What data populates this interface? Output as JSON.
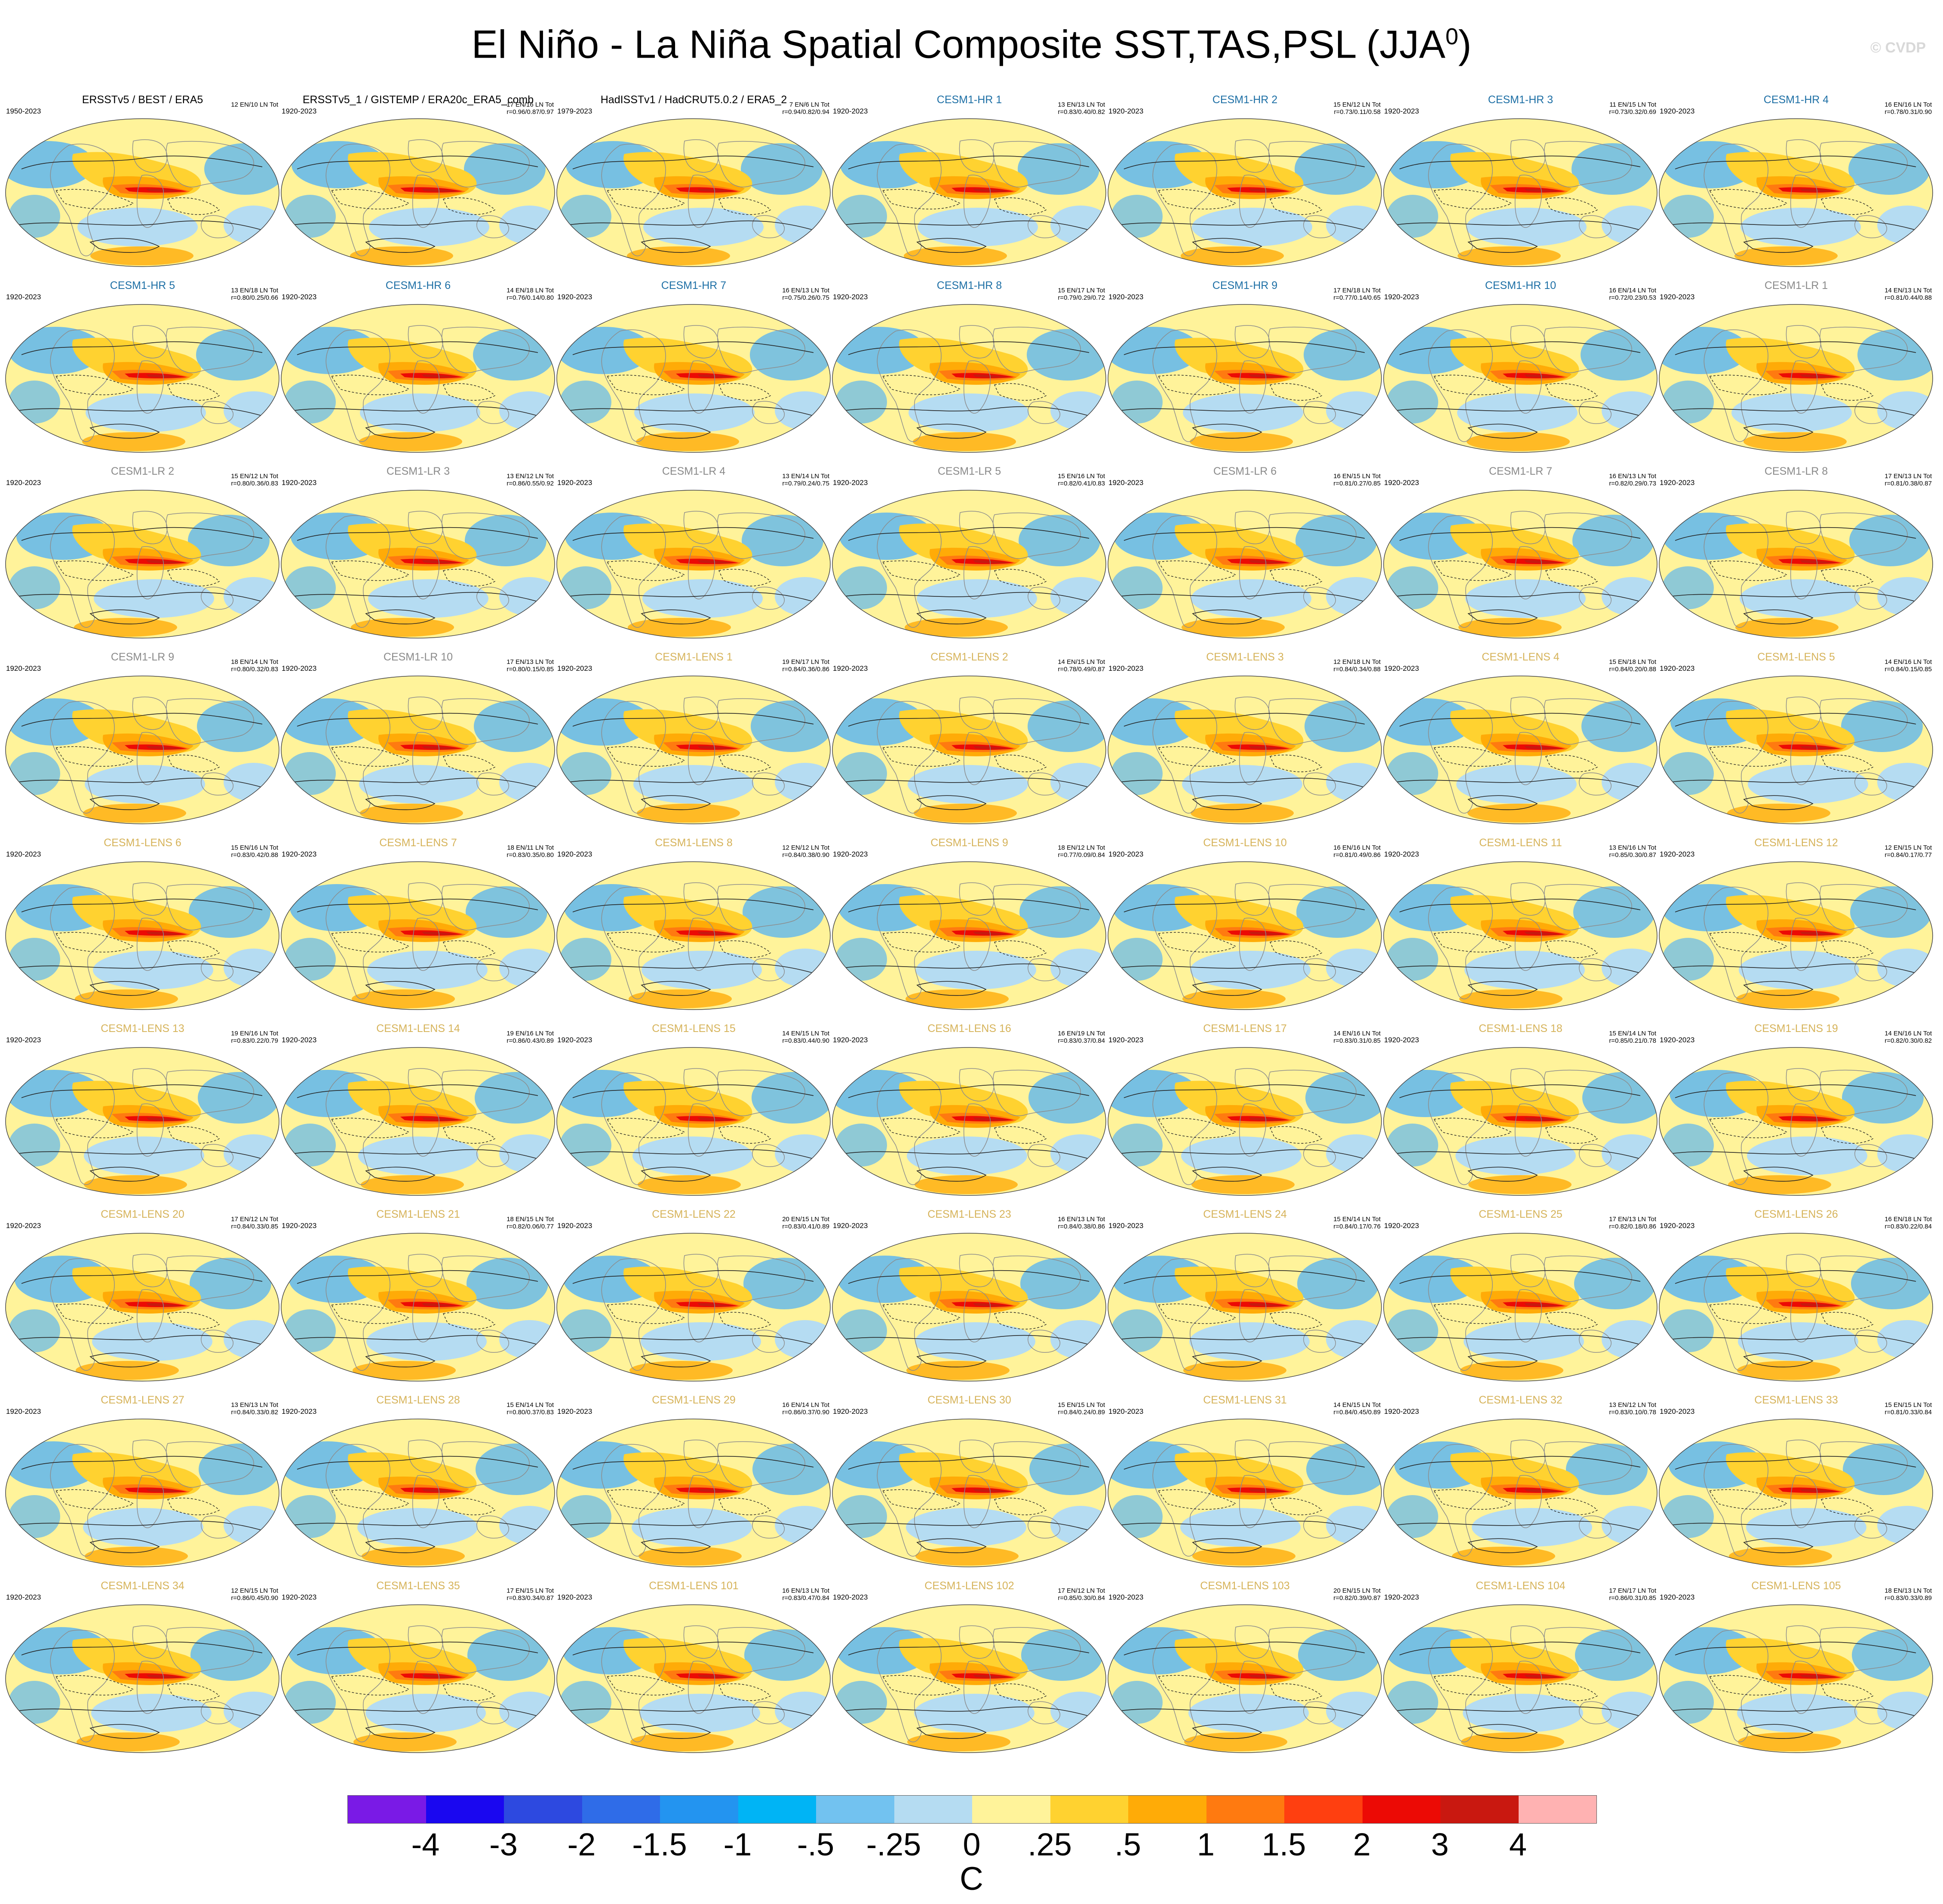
{
  "title": {
    "main": "El Niño - La Niña Spatial Composite SST,TAS,PSL (JJA",
    "sup": "0",
    "close": ")"
  },
  "watermark": "© CVDP",
  "colors": {
    "obs": "#000000",
    "hr": "#1d6fa5",
    "lr": "#8a8a8a",
    "lens": "#d6b35a"
  },
  "panels": [
    {
      "name": "ERSSTv5 / BEST / ERA5",
      "years": "1950-2023",
      "stats": [
        "12 EN/10 LN Tot",
        ""
      ],
      "group": "obs"
    },
    {
      "name": "ERSSTv5_1 / GISTEMP / ERA20c_ERA5_comb",
      "years": "1920-2023",
      "stats": [
        "17 EN/16 LN Tot",
        "r=0.96/0.87/0.97"
      ],
      "group": "obs"
    },
    {
      "name": "HadISSTv1 / HadCRUT5.0.2 / ERA5_2",
      "years": "1979-2023",
      "stats": [
        "7 EN/6 LN Tot",
        "r=0.94/0.82/0.94"
      ],
      "group": "obs"
    },
    {
      "name": "CESM1-HR 1",
      "years": "1920-2023",
      "stats": [
        "13 EN/13 LN Tot",
        "r=0.83/0.40/0.82"
      ],
      "group": "hr"
    },
    {
      "name": "CESM1-HR 2",
      "years": "1920-2023",
      "stats": [
        "15 EN/12 LN Tot",
        "r=0.73/0.11/0.58"
      ],
      "group": "hr"
    },
    {
      "name": "CESM1-HR 3",
      "years": "1920-2023",
      "stats": [
        "11 EN/15 LN Tot",
        "r=0.73/0.32/0.69"
      ],
      "group": "hr"
    },
    {
      "name": "CESM1-HR 4",
      "years": "1920-2023",
      "stats": [
        "16 EN/16 LN Tot",
        "r=0.78/0.31/0.90"
      ],
      "group": "hr"
    },
    {
      "name": "CESM1-HR 5",
      "years": "1920-2023",
      "stats": [
        "13 EN/18 LN Tot",
        "r=0.80/0.25/0.66"
      ],
      "group": "hr"
    },
    {
      "name": "CESM1-HR 6",
      "years": "1920-2023",
      "stats": [
        "14 EN/18 LN Tot",
        "r=0.76/0.14/0.80"
      ],
      "group": "hr"
    },
    {
      "name": "CESM1-HR 7",
      "years": "1920-2023",
      "stats": [
        "16 EN/13 LN Tot",
        "r=0.75/0.26/0.75"
      ],
      "group": "hr"
    },
    {
      "name": "CESM1-HR 8",
      "years": "1920-2023",
      "stats": [
        "15 EN/17 LN Tot",
        "r=0.79/0.29/0.72"
      ],
      "group": "hr"
    },
    {
      "name": "CESM1-HR 9",
      "years": "1920-2023",
      "stats": [
        "17 EN/18 LN Tot",
        "r=0.77/0.14/0.65"
      ],
      "group": "hr"
    },
    {
      "name": "CESM1-HR 10",
      "years": "1920-2023",
      "stats": [
        "16 EN/14 LN Tot",
        "r=0.72/0.23/0.53"
      ],
      "group": "hr"
    },
    {
      "name": "CESM1-LR 1",
      "years": "1920-2023",
      "stats": [
        "14 EN/13 LN Tot",
        "r=0.81/0.44/0.88"
      ],
      "group": "lr"
    },
    {
      "name": "CESM1-LR 2",
      "years": "1920-2023",
      "stats": [
        "15 EN/12 LN Tot",
        "r=0.80/0.36/0.83"
      ],
      "group": "lr"
    },
    {
      "name": "CESM1-LR 3",
      "years": "1920-2023",
      "stats": [
        "13 EN/12 LN Tot",
        "r=0.86/0.55/0.92"
      ],
      "group": "lr"
    },
    {
      "name": "CESM1-LR 4",
      "years": "1920-2023",
      "stats": [
        "13 EN/14 LN Tot",
        "r=0.79/0.24/0.75"
      ],
      "group": "lr"
    },
    {
      "name": "CESM1-LR 5",
      "years": "1920-2023",
      "stats": [
        "15 EN/16 LN Tot",
        "r=0.82/0.41/0.83"
      ],
      "group": "lr"
    },
    {
      "name": "CESM1-LR 6",
      "years": "1920-2023",
      "stats": [
        "16 EN/15 LN Tot",
        "r=0.81/0.27/0.85"
      ],
      "group": "lr"
    },
    {
      "name": "CESM1-LR 7",
      "years": "1920-2023",
      "stats": [
        "16 EN/13 LN Tot",
        "r=0.82/0.29/0.73"
      ],
      "group": "lr"
    },
    {
      "name": "CESM1-LR 8",
      "years": "1920-2023",
      "stats": [
        "17 EN/13 LN Tot",
        "r=0.81/0.38/0.87"
      ],
      "group": "lr"
    },
    {
      "name": "CESM1-LR 9",
      "years": "1920-2023",
      "stats": [
        "18 EN/14 LN Tot",
        "r=0.80/0.32/0.83"
      ],
      "group": "lr"
    },
    {
      "name": "CESM1-LR 10",
      "years": "1920-2023",
      "stats": [
        "17 EN/13 LN Tot",
        "r=0.80/0.15/0.85"
      ],
      "group": "lr"
    },
    {
      "name": "CESM1-LENS 1",
      "years": "1920-2023",
      "stats": [
        "19 EN/17 LN Tot",
        "r=0.84/0.36/0.86"
      ],
      "group": "lens"
    },
    {
      "name": "CESM1-LENS 2",
      "years": "1920-2023",
      "stats": [
        "14 EN/15 LN Tot",
        "r=0.78/0.49/0.87"
      ],
      "group": "lens"
    },
    {
      "name": "CESM1-LENS 3",
      "years": "1920-2023",
      "stats": [
        "12 EN/18 LN Tot",
        "r=0.84/0.34/0.88"
      ],
      "group": "lens"
    },
    {
      "name": "CESM1-LENS 4",
      "years": "1920-2023",
      "stats": [
        "15 EN/18 LN Tot",
        "r=0.84/0.20/0.88"
      ],
      "group": "lens"
    },
    {
      "name": "CESM1-LENS 5",
      "years": "1920-2023",
      "stats": [
        "14 EN/16 LN Tot",
        "r=0.84/0.15/0.85"
      ],
      "group": "lens"
    },
    {
      "name": "CESM1-LENS 6",
      "years": "1920-2023",
      "stats": [
        "15 EN/16 LN Tot",
        "r=0.83/0.42/0.88"
      ],
      "group": "lens"
    },
    {
      "name": "CESM1-LENS 7",
      "years": "1920-2023",
      "stats": [
        "18 EN/11 LN Tot",
        "r=0.83/0.35/0.80"
      ],
      "group": "lens"
    },
    {
      "name": "CESM1-LENS 8",
      "years": "1920-2023",
      "stats": [
        "12 EN/12 LN Tot",
        "r=0.84/0.38/0.90"
      ],
      "group": "lens"
    },
    {
      "name": "CESM1-LENS 9",
      "years": "1920-2023",
      "stats": [
        "18 EN/12 LN Tot",
        "r=0.77/0.09/0.84"
      ],
      "group": "lens"
    },
    {
      "name": "CESM1-LENS 10",
      "years": "1920-2023",
      "stats": [
        "16 EN/16 LN Tot",
        "r=0.81/0.49/0.86"
      ],
      "group": "lens"
    },
    {
      "name": "CESM1-LENS 11",
      "years": "1920-2023",
      "stats": [
        "13 EN/16 LN Tot",
        "r=0.85/0.30/0.87"
      ],
      "group": "lens"
    },
    {
      "name": "CESM1-LENS 12",
      "years": "1920-2023",
      "stats": [
        "12 EN/15 LN Tot",
        "r=0.84/0.17/0.77"
      ],
      "group": "lens"
    },
    {
      "name": "CESM1-LENS 13",
      "years": "1920-2023",
      "stats": [
        "19 EN/16 LN Tot",
        "r=0.83/0.22/0.79"
      ],
      "group": "lens"
    },
    {
      "name": "CESM1-LENS 14",
      "years": "1920-2023",
      "stats": [
        "19 EN/16 LN Tot",
        "r=0.86/0.43/0.89"
      ],
      "group": "lens"
    },
    {
      "name": "CESM1-LENS 15",
      "years": "1920-2023",
      "stats": [
        "14 EN/15 LN Tot",
        "r=0.83/0.44/0.90"
      ],
      "group": "lens"
    },
    {
      "name": "CESM1-LENS 16",
      "years": "1920-2023",
      "stats": [
        "16 EN/19 LN Tot",
        "r=0.83/0.37/0.84"
      ],
      "group": "lens"
    },
    {
      "name": "CESM1-LENS 17",
      "years": "1920-2023",
      "stats": [
        "14 EN/16 LN Tot",
        "r=0.83/0.31/0.85"
      ],
      "group": "lens"
    },
    {
      "name": "CESM1-LENS 18",
      "years": "1920-2023",
      "stats": [
        "15 EN/14 LN Tot",
        "r=0.85/0.21/0.78"
      ],
      "group": "lens"
    },
    {
      "name": "CESM1-LENS 19",
      "years": "1920-2023",
      "stats": [
        "14 EN/16 LN Tot",
        "r=0.82/0.30/0.82"
      ],
      "group": "lens"
    },
    {
      "name": "CESM1-LENS 20",
      "years": "1920-2023",
      "stats": [
        "17 EN/12 LN Tot",
        "r=0.84/0.33/0.85"
      ],
      "group": "lens"
    },
    {
      "name": "CESM1-LENS 21",
      "years": "1920-2023",
      "stats": [
        "18 EN/15 LN Tot",
        "r=0.82/0.06/0.77"
      ],
      "group": "lens"
    },
    {
      "name": "CESM1-LENS 22",
      "years": "1920-2023",
      "stats": [
        "20 EN/15 LN Tot",
        "r=0.83/0.41/0.89"
      ],
      "group": "lens"
    },
    {
      "name": "CESM1-LENS 23",
      "years": "1920-2023",
      "stats": [
        "16 EN/13 LN Tot",
        "r=0.84/0.38/0.86"
      ],
      "group": "lens"
    },
    {
      "name": "CESM1-LENS 24",
      "years": "1920-2023",
      "stats": [
        "15 EN/14 LN Tot",
        "r=0.84/0.17/0.76"
      ],
      "group": "lens"
    },
    {
      "name": "CESM1-LENS 25",
      "years": "1920-2023",
      "stats": [
        "17 EN/13 LN Tot",
        "r=0.82/0.18/0.86"
      ],
      "group": "lens"
    },
    {
      "name": "CESM1-LENS 26",
      "years": "1920-2023",
      "stats": [
        "16 EN/18 LN Tot",
        "r=0.83/0.22/0.84"
      ],
      "group": "lens"
    },
    {
      "name": "CESM1-LENS 27",
      "years": "1920-2023",
      "stats": [
        "13 EN/13 LN Tot",
        "r=0.84/0.33/0.82"
      ],
      "group": "lens"
    },
    {
      "name": "CESM1-LENS 28",
      "years": "1920-2023",
      "stats": [
        "15 EN/14 LN Tot",
        "r=0.80/0.37/0.83"
      ],
      "group": "lens"
    },
    {
      "name": "CESM1-LENS 29",
      "years": "1920-2023",
      "stats": [
        "16 EN/14 LN Tot",
        "r=0.86/0.37/0.90"
      ],
      "group": "lens"
    },
    {
      "name": "CESM1-LENS 30",
      "years": "1920-2023",
      "stats": [
        "15 EN/15 LN Tot",
        "r=0.84/0.24/0.89"
      ],
      "group": "lens"
    },
    {
      "name": "CESM1-LENS 31",
      "years": "1920-2023",
      "stats": [
        "14 EN/15 LN Tot",
        "r=0.84/0.45/0.89"
      ],
      "group": "lens"
    },
    {
      "name": "CESM1-LENS 32",
      "years": "1920-2023",
      "stats": [
        "13 EN/12 LN Tot",
        "r=0.83/0.10/0.78"
      ],
      "group": "lens"
    },
    {
      "name": "CESM1-LENS 33",
      "years": "1920-2023",
      "stats": [
        "15 EN/15 LN Tot",
        "r=0.81/0.33/0.84"
      ],
      "group": "lens"
    },
    {
      "name": "CESM1-LENS 34",
      "years": "1920-2023",
      "stats": [
        "12 EN/15 LN Tot",
        "r=0.86/0.45/0.90"
      ],
      "group": "lens"
    },
    {
      "name": "CESM1-LENS 35",
      "years": "1920-2023",
      "stats": [
        "17 EN/15 LN Tot",
        "r=0.83/0.34/0.87"
      ],
      "group": "lens"
    },
    {
      "name": "CESM1-LENS 101",
      "years": "1920-2023",
      "stats": [
        "16 EN/13 LN Tot",
        "r=0.83/0.47/0.84"
      ],
      "group": "lens"
    },
    {
      "name": "CESM1-LENS 102",
      "years": "1920-2023",
      "stats": [
        "17 EN/12 LN Tot",
        "r=0.85/0.30/0.84"
      ],
      "group": "lens"
    },
    {
      "name": "CESM1-LENS 103",
      "years": "1920-2023",
      "stats": [
        "20 EN/15 LN Tot",
        "r=0.82/0.39/0.87"
      ],
      "group": "lens"
    },
    {
      "name": "CESM1-LENS 104",
      "years": "1920-2023",
      "stats": [
        "17 EN/17 LN Tot",
        "r=0.86/0.31/0.85"
      ],
      "group": "lens"
    },
    {
      "name": "CESM1-LENS 105",
      "years": "1920-2023",
      "stats": [
        "18 EN/13 LN Tot",
        "r=0.83/0.33/0.89"
      ],
      "group": "lens"
    }
  ],
  "colorbar": {
    "colors": [
      "#7a1ae6",
      "#1a07f0",
      "#2d49e0",
      "#2f6ce8",
      "#2394f0",
      "#00b4f5",
      "#72c2f0",
      "#b5dcf2",
      "#fff39a",
      "#ffd230",
      "#ffab07",
      "#ff7a10",
      "#ff3f10",
      "#ec0a05",
      "#c91810",
      "#ffb2b2"
    ],
    "ticks": [
      "-4",
      "-3",
      "-2",
      "-1.5",
      "-1",
      "-.5",
      "-.25",
      "0",
      ".25",
      ".5",
      "1",
      "1.5",
      "2",
      "3",
      "4"
    ],
    "units": "C"
  },
  "palette": {
    "ocean_blue": "#5fb6ee",
    "light_blue": "#b5dcf2",
    "pale_yellow": "#fff39a",
    "yellow": "#ffd230",
    "orange": "#ffab07",
    "dark_orange": "#ff7a10",
    "red": "#ec0a05",
    "dark_red": "#c91810",
    "land_outline": "#8c8c8c",
    "contour": "#222222"
  }
}
